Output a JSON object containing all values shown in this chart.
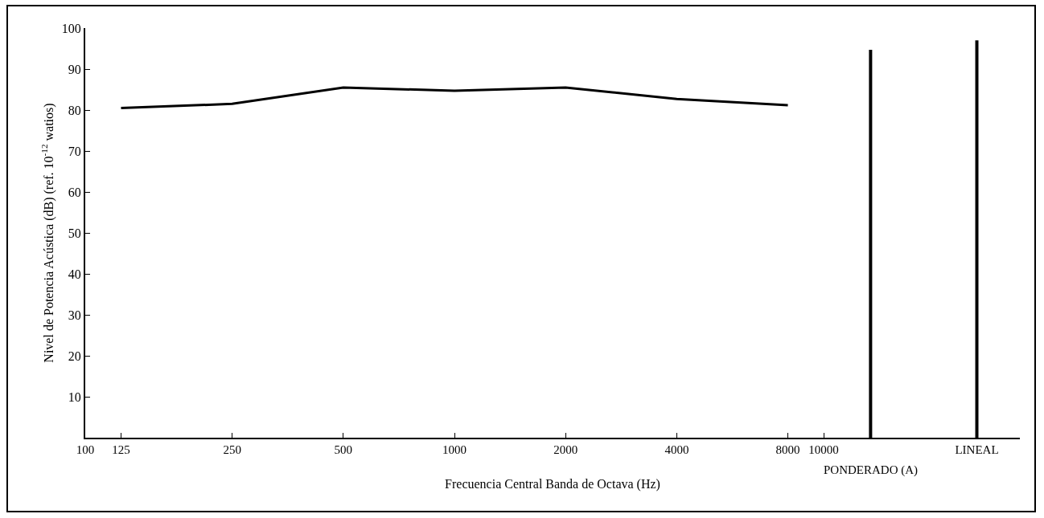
{
  "chart_data": {
    "type": "line",
    "xlabel": "Frecuencia Central Banda de Octava (Hz)",
    "ylabel": "Nivel de Potencia Acústica (dB) (ref. 10$^{-12}$ watios)",
    "x": [
      125,
      250,
      500,
      1000,
      2000,
      4000,
      8000
    ],
    "series": [
      {
        "color": "#000000",
        "values": [
          80.5,
          81.5,
          85.5,
          84.7,
          85.5,
          82.7,
          81.2
        ]
      },
      {
        "type": "bar",
        "x": [
          13400,
          26000
        ],
        "color": "#000000",
        "values": [
          94.7,
          97
        ]
      }
    ],
    "log": "x",
    "xlim": [
      100,
      34000
    ],
    "xticks": [
      100,
      125,
      250,
      500,
      1000,
      2000,
      4000,
      8000,
      10000,
      {
        "value": 13400,
        "label": null
      },
      {
        "value": 26000,
        "label": "LINEAL"
      }
    ],
    "ylim": [
      0,
      100
    ],
    "yticks": [
      10,
      20,
      30,
      40,
      50,
      60,
      70,
      80,
      90,
      100
    ],
    "annotations": [
      "PONDERADO (A)"
    ],
    "grid": false,
    "marker": "none",
    "line_style": "solid"
  }
}
